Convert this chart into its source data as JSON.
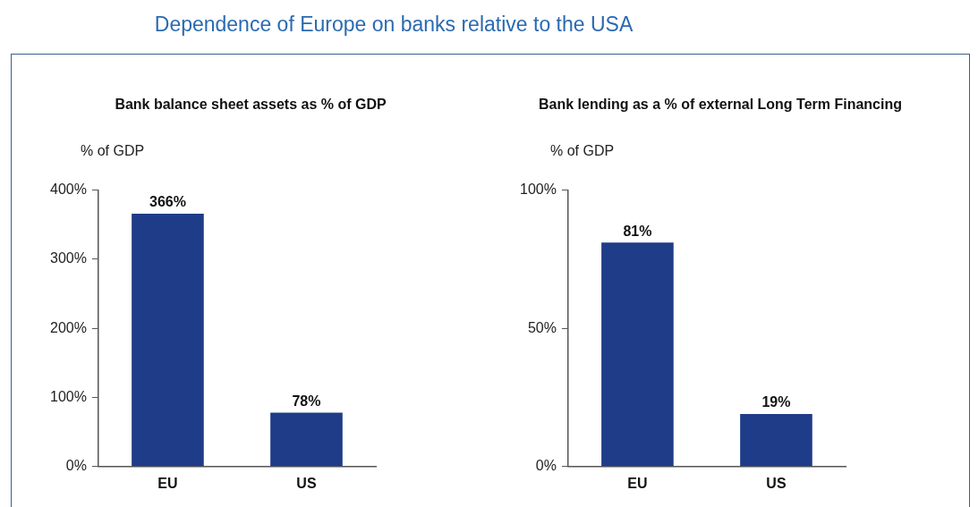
{
  "chart_data": [
    {
      "type": "bar",
      "title": "Dependence of Europe on banks relative to the USA",
      "subtitle": "Bank balance sheet assets as % of GDP",
      "ylabel": "% of GDP",
      "categories": [
        "EU",
        "US"
      ],
      "values": [
        366,
        78
      ],
      "color": "#1f3c88",
      "ylim": [
        0,
        400
      ],
      "yticks": [
        {
          "value": 0,
          "label": "0%"
        },
        {
          "value": 100,
          "label": "100%"
        },
        {
          "value": 200,
          "label": "200%"
        },
        {
          "value": 300,
          "label": "300%"
        },
        {
          "value": 400,
          "label": "400%"
        }
      ],
      "value_labels": [
        "366%",
        "78%"
      ]
    },
    {
      "type": "bar",
      "subtitle": "Bank lending as a % of external Long Term Financing",
      "ylabel": "% of GDP",
      "categories": [
        "EU",
        "US"
      ],
      "values": [
        81,
        19
      ],
      "color": "#1f3c88",
      "ylim": [
        0,
        100
      ],
      "yticks": [
        {
          "value": 0,
          "label": "0%"
        },
        {
          "value": 50,
          "label": "50%"
        },
        {
          "value": 100,
          "label": "100%"
        }
      ],
      "value_labels": [
        "81%",
        "19%"
      ]
    }
  ]
}
